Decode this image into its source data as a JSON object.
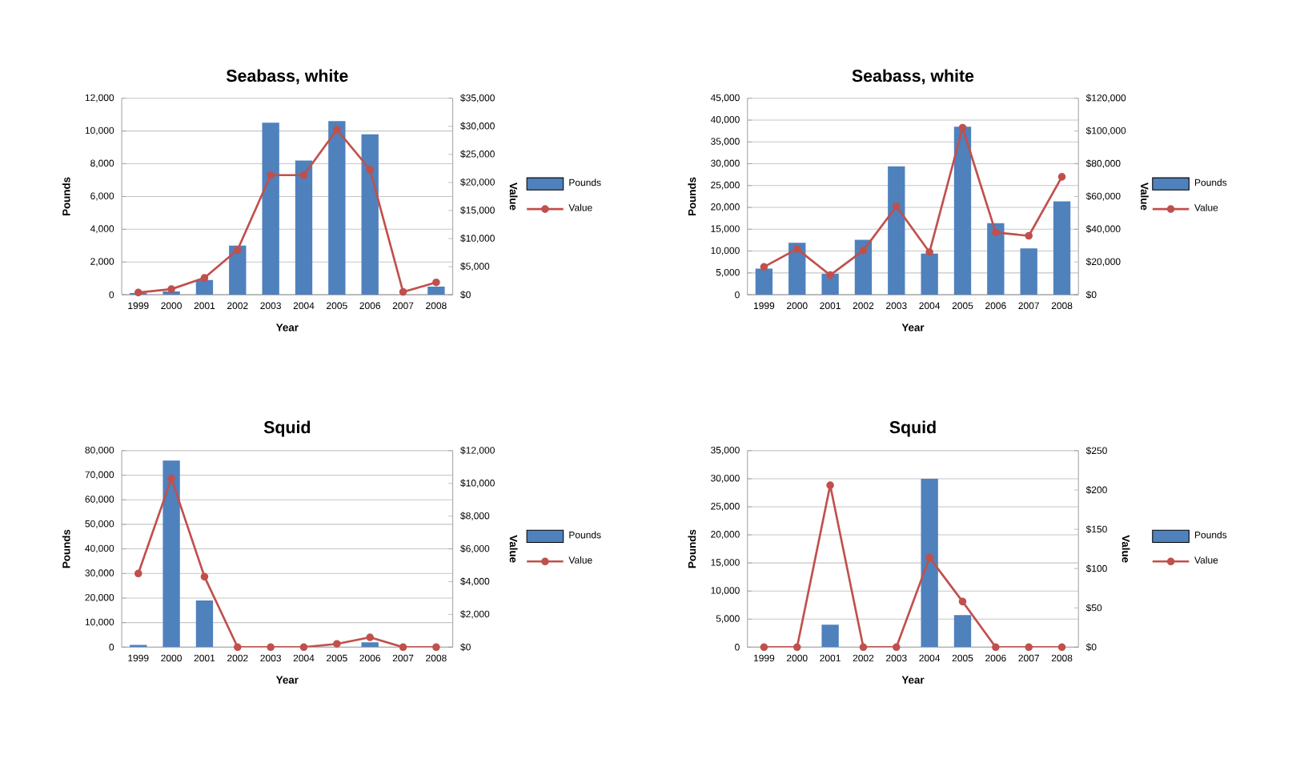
{
  "chart_data": [
    {
      "type": "bar",
      "title": "Seabass, white",
      "xlabel": "Year",
      "ylabel": "Pounds",
      "y2label": "Value",
      "categories": [
        "1999",
        "2000",
        "2001",
        "2002",
        "2003",
        "2004",
        "2005",
        "2006",
        "2007",
        "2008"
      ],
      "series": [
        {
          "name": "Pounds",
          "color": "#4f81bd",
          "values": [
            100,
            200,
            900,
            3000,
            10500,
            8200,
            10600,
            9800,
            0,
            500
          ]
        },
        {
          "name": "Value",
          "type": "line",
          "axis": "y2",
          "color": "#c0504d",
          "values": [
            400,
            1000,
            3000,
            8000,
            21300,
            21300,
            29400,
            22300,
            500,
            2200
          ]
        }
      ],
      "ylim": [
        0,
        12000
      ],
      "yticks": [
        0,
        {
          "value": 2000,
          "label": "2,000"
        },
        {
          "value": 4000,
          "label": "4,000"
        },
        {
          "value": 6000,
          "label": "6,000"
        },
        {
          "value": 8000,
          "label": "8,000"
        },
        {
          "value": 10000,
          "label": "10,000"
        },
        {
          "value": 12000,
          "label": "12,000"
        }
      ],
      "y2lim": [
        0,
        35000
      ],
      "y2ticks": [
        {
          "value": 0,
          "label": "$0"
        },
        {
          "value": 5000,
          "label": "$5,000"
        },
        {
          "value": 10000,
          "label": "$10,000"
        },
        {
          "value": 15000,
          "label": "$15,000"
        },
        {
          "value": 20000,
          "label": "$20,000"
        },
        {
          "value": 25000,
          "label": "$25,000"
        },
        {
          "value": 30000,
          "label": "$30,000"
        },
        {
          "value": 35000,
          "label": "$35,000"
        }
      ],
      "grid": "y",
      "legend": "right",
      "marker": "circle"
    },
    {
      "type": "bar",
      "title": "Seabass, white",
      "xlabel": "Year",
      "ylabel": "Pounds",
      "y2label": "Value",
      "categories": [
        "1999",
        "2000",
        "2001",
        "2002",
        "2003",
        "2004",
        "2005",
        "2006",
        "2007",
        "2008"
      ],
      "series": [
        {
          "name": "Pounds",
          "color": "#4f81bd",
          "values": [
            6000,
            11900,
            4800,
            12600,
            29400,
            9400,
            38500,
            16400,
            10600,
            21400
          ]
        },
        {
          "name": "Value",
          "type": "line",
          "axis": "y2",
          "color": "#c0504d",
          "values": [
            17000,
            28000,
            12000,
            27000,
            54000,
            26000,
            102000,
            38000,
            36000,
            72000
          ]
        }
      ],
      "ylim": [
        0,
        45000
      ],
      "yticks": [
        0,
        {
          "value": 5000,
          "label": "5,000"
        },
        {
          "value": 10000,
          "label": "10,000"
        },
        {
          "value": 15000,
          "label": "15,000"
        },
        {
          "value": 20000,
          "label": "20,000"
        },
        {
          "value": 25000,
          "label": "25,000"
        },
        {
          "value": 30000,
          "label": "30,000"
        },
        {
          "value": 35000,
          "label": "35,000"
        },
        {
          "value": 40000,
          "label": "40,000"
        },
        {
          "value": 45000,
          "label": "45,000"
        }
      ],
      "y2lim": [
        0,
        120000
      ],
      "y2ticks": [
        {
          "value": 0,
          "label": "$0"
        },
        {
          "value": 20000,
          "label": "$20,000"
        },
        {
          "value": 40000,
          "label": "$40,000"
        },
        {
          "value": 60000,
          "label": "$60,000"
        },
        {
          "value": 80000,
          "label": "$80,000"
        },
        {
          "value": 100000,
          "label": "$100,000"
        },
        {
          "value": 120000,
          "label": "$120,000"
        }
      ],
      "grid": "y",
      "legend": "right",
      "marker": "circle"
    },
    {
      "type": "bar",
      "title": "Squid",
      "xlabel": "Year",
      "ylabel": "Pounds",
      "y2label": "Value",
      "categories": [
        "1999",
        "2000",
        "2001",
        "2002",
        "2003",
        "2004",
        "2005",
        "2006",
        "2007",
        "2008"
      ],
      "series": [
        {
          "name": "Pounds",
          "color": "#4f81bd",
          "values": [
            900,
            76000,
            19000,
            0,
            0,
            0,
            0,
            2000,
            0,
            0
          ]
        },
        {
          "name": "Value",
          "type": "line",
          "axis": "y2",
          "color": "#c0504d",
          "values": [
            4500,
            10300,
            4300,
            0,
            0,
            0,
            200,
            600,
            0,
            0
          ]
        }
      ],
      "ylim": [
        0,
        80000
      ],
      "yticks": [
        0,
        {
          "value": 10000,
          "label": "10,000"
        },
        {
          "value": 20000,
          "label": "20,000"
        },
        {
          "value": 30000,
          "label": "30,000"
        },
        {
          "value": 40000,
          "label": "40,000"
        },
        {
          "value": 50000,
          "label": "50,000"
        },
        {
          "value": 60000,
          "label": "60,000"
        },
        {
          "value": 70000,
          "label": "70,000"
        },
        {
          "value": 80000,
          "label": "80,000"
        }
      ],
      "y2lim": [
        0,
        12000
      ],
      "y2ticks": [
        {
          "value": 0,
          "label": "$0"
        },
        {
          "value": 2000,
          "label": "$2,000"
        },
        {
          "value": 4000,
          "label": "$4,000"
        },
        {
          "value": 6000,
          "label": "$6,000"
        },
        {
          "value": 8000,
          "label": "$8,000"
        },
        {
          "value": 10000,
          "label": "$10,000"
        },
        {
          "value": 12000,
          "label": "$12,000"
        }
      ],
      "grid": "y",
      "legend": "right",
      "marker": "circle"
    },
    {
      "type": "bar",
      "title": "Squid",
      "xlabel": "Year",
      "ylabel": "Pounds",
      "y2label": "Value",
      "categories": [
        "1999",
        "2000",
        "2001",
        "2002",
        "2003",
        "2004",
        "2005",
        "2006",
        "2007",
        "2008"
      ],
      "series": [
        {
          "name": "Pounds",
          "color": "#4f81bd",
          "values": [
            0,
            0,
            4000,
            0,
            0,
            30000,
            5700,
            0,
            0,
            0
          ]
        },
        {
          "name": "Value",
          "type": "line",
          "axis": "y2",
          "color": "#c0504d",
          "values": [
            0,
            0,
            206,
            0,
            0,
            114,
            58,
            0,
            0,
            0
          ]
        }
      ],
      "ylim": [
        0,
        35000
      ],
      "yticks": [
        0,
        {
          "value": 5000,
          "label": "5,000"
        },
        {
          "value": 10000,
          "label": "10,000"
        },
        {
          "value": 15000,
          "label": "15,000"
        },
        {
          "value": 20000,
          "label": "20,000"
        },
        {
          "value": 25000,
          "label": "25,000"
        },
        {
          "value": 30000,
          "label": "30,000"
        },
        {
          "value": 35000,
          "label": "35,000"
        }
      ],
      "y2lim": [
        0,
        250
      ],
      "y2ticks": [
        {
          "value": 0,
          "label": "$0"
        },
        {
          "value": 50,
          "label": "$50"
        },
        {
          "value": 100,
          "label": "$100"
        },
        {
          "value": 150,
          "label": "$150"
        },
        {
          "value": 200,
          "label": "$200"
        },
        {
          "value": 250,
          "label": "$250"
        }
      ],
      "grid": "y",
      "legend": "right",
      "marker": "circle"
    }
  ]
}
